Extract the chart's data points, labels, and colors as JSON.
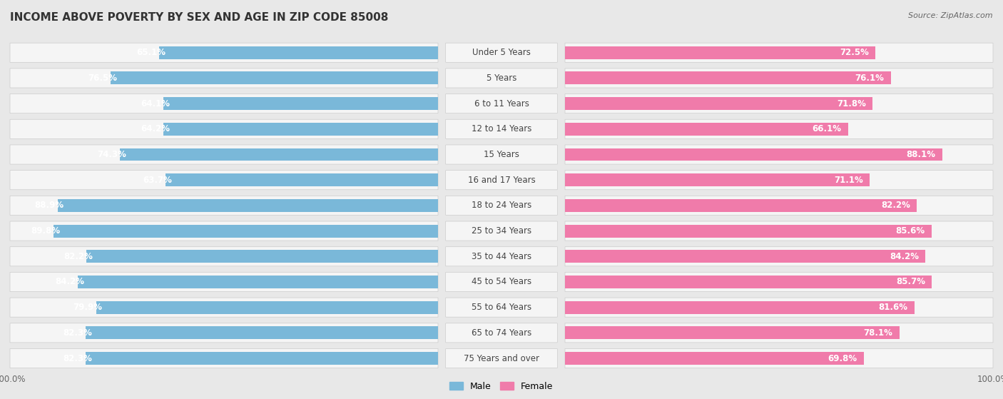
{
  "title": "INCOME ABOVE POVERTY BY SEX AND AGE IN ZIP CODE 85008",
  "source": "Source: ZipAtlas.com",
  "categories": [
    "Under 5 Years",
    "5 Years",
    "6 to 11 Years",
    "12 to 14 Years",
    "15 Years",
    "16 and 17 Years",
    "18 to 24 Years",
    "25 to 34 Years",
    "35 to 44 Years",
    "45 to 54 Years",
    "55 to 64 Years",
    "65 to 74 Years",
    "75 Years and over"
  ],
  "male_values": [
    65.1,
    76.5,
    64.1,
    64.2,
    74.3,
    63.7,
    88.9,
    89.8,
    82.2,
    84.2,
    79.9,
    82.3,
    82.3
  ],
  "female_values": [
    72.5,
    76.1,
    71.8,
    66.1,
    88.1,
    71.1,
    82.2,
    85.6,
    84.2,
    85.7,
    81.6,
    78.1,
    69.8
  ],
  "male_color": "#7ab8d9",
  "female_color": "#f07baa",
  "male_light_color": "#c5dff0",
  "female_light_color": "#f9c0d8",
  "background_color": "#e8e8e8",
  "row_bg_color": "#f5f5f5",
  "title_fontsize": 11,
  "label_fontsize": 8.5,
  "value_fontsize": 8.5,
  "tick_fontsize": 8.5,
  "legend_fontsize": 9
}
